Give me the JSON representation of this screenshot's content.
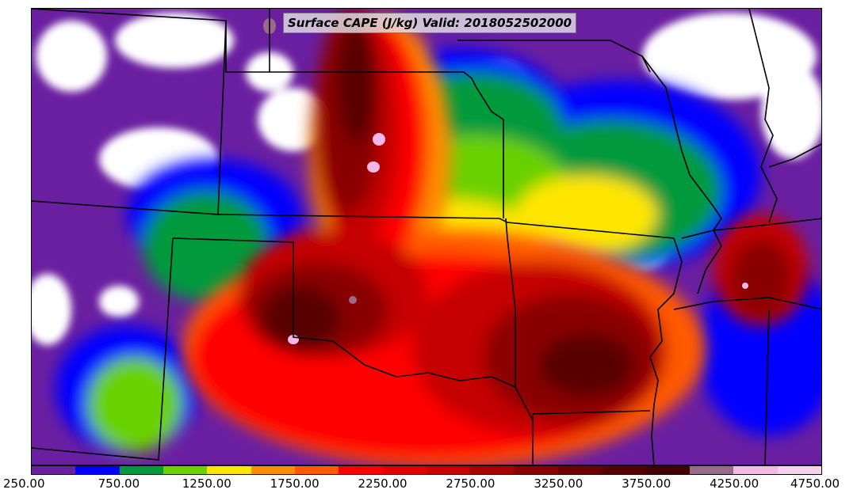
{
  "title": "Surface CAPE (J/kg) Valid: 2018052502000",
  "colorbar": {
    "min": 250,
    "max": 4750,
    "step": 250,
    "colors": [
      "#6a1fa0",
      "#0000ff",
      "#009a3c",
      "#6ad100",
      "#ffe600",
      "#ff8c00",
      "#ff5a00",
      "#ff0000",
      "#e00000",
      "#c40000",
      "#a80000",
      "#8a0000",
      "#700000",
      "#580000",
      "#420000",
      "#9a6a8a",
      "#f4b8e8",
      "#f8d0f0"
    ],
    "tick_labels": [
      "250.00",
      "750.00",
      "1250.00",
      "1750.00",
      "2250.00",
      "2750.00",
      "3250.00",
      "3750.00",
      "4250.00",
      "4750.00"
    ]
  }
}
